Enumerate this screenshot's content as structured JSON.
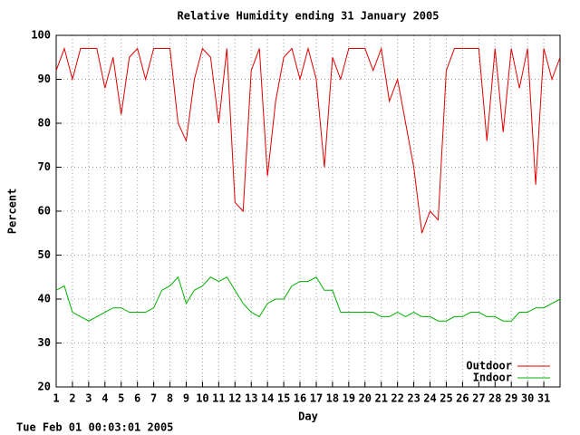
{
  "chart_data": {
    "type": "line",
    "title": "Relative Humidity ending 31 January 2005",
    "x_label": "Day",
    "y_label": "Percent",
    "footer": "Tue Feb 01 00:03:01 2005",
    "xlim": [
      1,
      32
    ],
    "ylim": [
      20,
      100
    ],
    "xticks": [
      1,
      2,
      3,
      4,
      5,
      6,
      7,
      8,
      9,
      10,
      11,
      12,
      13,
      14,
      15,
      16,
      17,
      18,
      19,
      20,
      21,
      22,
      23,
      24,
      25,
      26,
      27,
      28,
      29,
      30,
      31
    ],
    "yticks": [
      20,
      30,
      40,
      50,
      60,
      70,
      80,
      90,
      100
    ],
    "grid": true,
    "legend": "bottom-right",
    "x": [
      1,
      1.5,
      2,
      2.5,
      3,
      3.5,
      4,
      4.5,
      5,
      5.5,
      6,
      6.5,
      7,
      7.5,
      8,
      8.5,
      9,
      9.5,
      10,
      10.5,
      11,
      11.5,
      12,
      12.5,
      13,
      13.5,
      14,
      14.5,
      15,
      15.5,
      16,
      16.5,
      17,
      17.5,
      18,
      18.5,
      19,
      19.5,
      20,
      20.5,
      21,
      21.5,
      22,
      22.5,
      23,
      23.5,
      24,
      24.5,
      25,
      25.5,
      26,
      26.5,
      27,
      27.5,
      28,
      28.5,
      29,
      29.5,
      30,
      30.5,
      31,
      31.5,
      32
    ],
    "series": [
      {
        "name": "Outdoor",
        "color": "#e00000",
        "values": [
          92,
          97,
          90,
          97,
          97,
          97,
          88,
          95,
          82,
          95,
          97,
          90,
          97,
          97,
          97,
          80,
          76,
          90,
          97,
          95,
          80,
          97,
          62,
          60,
          92,
          97,
          68,
          85,
          95,
          97,
          90,
          97,
          90,
          70,
          95,
          90,
          97,
          97,
          97,
          92,
          97,
          85,
          90,
          80,
          70,
          55,
          60,
          58,
          92,
          97,
          97,
          97,
          97,
          76,
          97,
          78,
          97,
          88,
          97,
          66,
          97,
          90,
          95
        ]
      },
      {
        "name": "Indoor",
        "color": "#00b000",
        "values": [
          42,
          43,
          37,
          36,
          35,
          36,
          37,
          38,
          38,
          37,
          37,
          37,
          38,
          42,
          43,
          45,
          39,
          42,
          43,
          45,
          44,
          45,
          42,
          39,
          37,
          36,
          39,
          40,
          40,
          43,
          44,
          44,
          45,
          42,
          42,
          37,
          37,
          37,
          37,
          37,
          36,
          36,
          37,
          36,
          37,
          36,
          36,
          35,
          35,
          36,
          36,
          37,
          37,
          36,
          36,
          35,
          35,
          37,
          37,
          38,
          38,
          39,
          40
        ]
      }
    ]
  }
}
